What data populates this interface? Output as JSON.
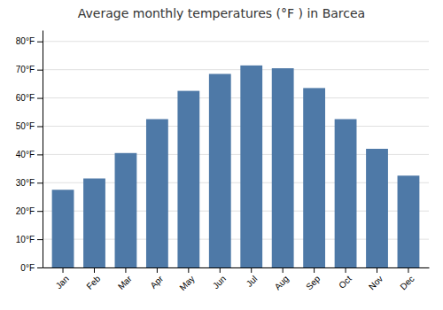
{
  "chart_data": {
    "type": "bar",
    "title": "Average monthly temperatures (°F ) in Barcea",
    "categories": [
      "Jan",
      "Feb",
      "Mar",
      "Apr",
      "May",
      "Jun",
      "Jul",
      "Aug",
      "Sep",
      "Oct",
      "Nov",
      "Dec"
    ],
    "values": [
      27.5,
      31.5,
      40.5,
      52.5,
      62.5,
      68.5,
      71.5,
      70.5,
      63.5,
      52.5,
      42.0,
      32.5
    ],
    "ylim": [
      0,
      84
    ],
    "yticks": [
      {
        "value": 0,
        "label": "0°F"
      },
      {
        "value": 10,
        "label": "10°F"
      },
      {
        "value": 20,
        "label": "20°F"
      },
      {
        "value": 30,
        "label": "30°F"
      },
      {
        "value": 40,
        "label": "40°F"
      },
      {
        "value": 50,
        "label": "50°F"
      },
      {
        "value": 60,
        "label": "60°F"
      },
      {
        "value": 70,
        "label": "70°F"
      },
      {
        "value": 80,
        "label": "80°F"
      }
    ],
    "grid": true
  }
}
